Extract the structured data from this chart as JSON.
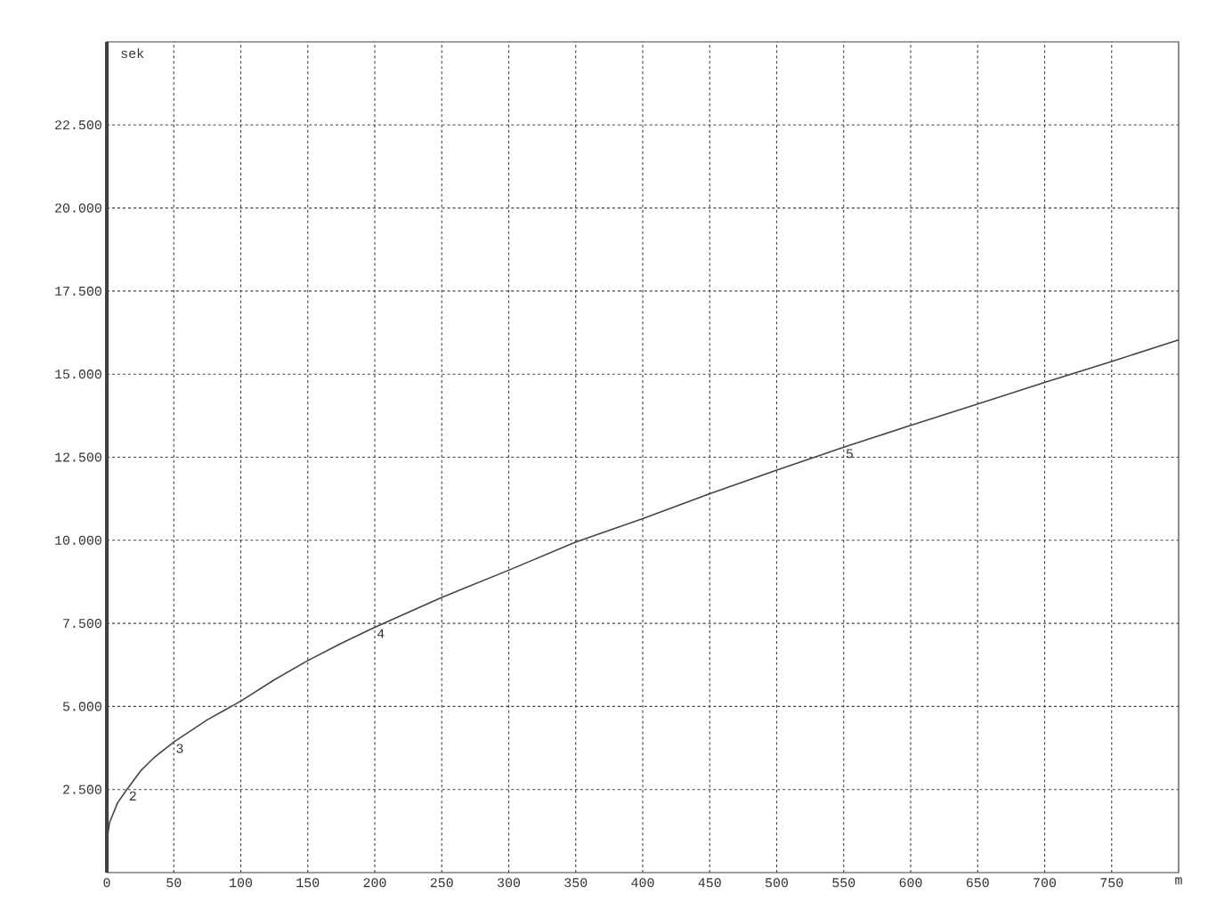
{
  "chart_data": {
    "type": "line",
    "xlabel": "m",
    "ylabel": "sek",
    "x": [
      0,
      2,
      4.5,
      8,
      15,
      25,
      35,
      50,
      75,
      100,
      125,
      150,
      175,
      200,
      250,
      300,
      350,
      400,
      450,
      500,
      550,
      600,
      650,
      700,
      750,
      800
    ],
    "series": [
      {
        "color": "#444444",
        "values": [
          940,
          1500,
          1750,
          2100,
          2500,
          3050,
          3450,
          3930,
          4600,
          5160,
          5800,
          6380,
          6900,
          7380,
          8280,
          9100,
          9950,
          10650,
          11400,
          12110,
          12800,
          13460,
          14100,
          14750,
          15380,
          16030
        ]
      }
    ],
    "xlim": [
      0,
      800
    ],
    "ylim": [
      0,
      25000
    ],
    "xticks": [
      0,
      50,
      100,
      150,
      200,
      250,
      300,
      350,
      400,
      450,
      500,
      550,
      600,
      650,
      700,
      750
    ],
    "yticks": [
      {
        "value": 2500,
        "label": "2.500"
      },
      {
        "value": 5000,
        "label": "5.000"
      },
      {
        "value": 7500,
        "label": "7.500"
      },
      {
        "value": 10000,
        "label": "10.000"
      },
      {
        "value": 12500,
        "label": "12.500"
      },
      {
        "value": 15000,
        "label": "15.000"
      },
      {
        "value": 17500,
        "label": "17.500"
      },
      {
        "value": 20000,
        "label": "20.000"
      },
      {
        "value": 22500,
        "label": "22.500"
      }
    ],
    "annotations": [
      {
        "text": "2",
        "x": 15,
        "y": 2500
      },
      {
        "text": "3",
        "x": 50,
        "y": 3930
      },
      {
        "text": "4",
        "x": 200,
        "y": 7380
      },
      {
        "text": "5",
        "x": 550,
        "y": 12800
      }
    ],
    "grid": true,
    "line_style": "solid",
    "marker": "none"
  }
}
